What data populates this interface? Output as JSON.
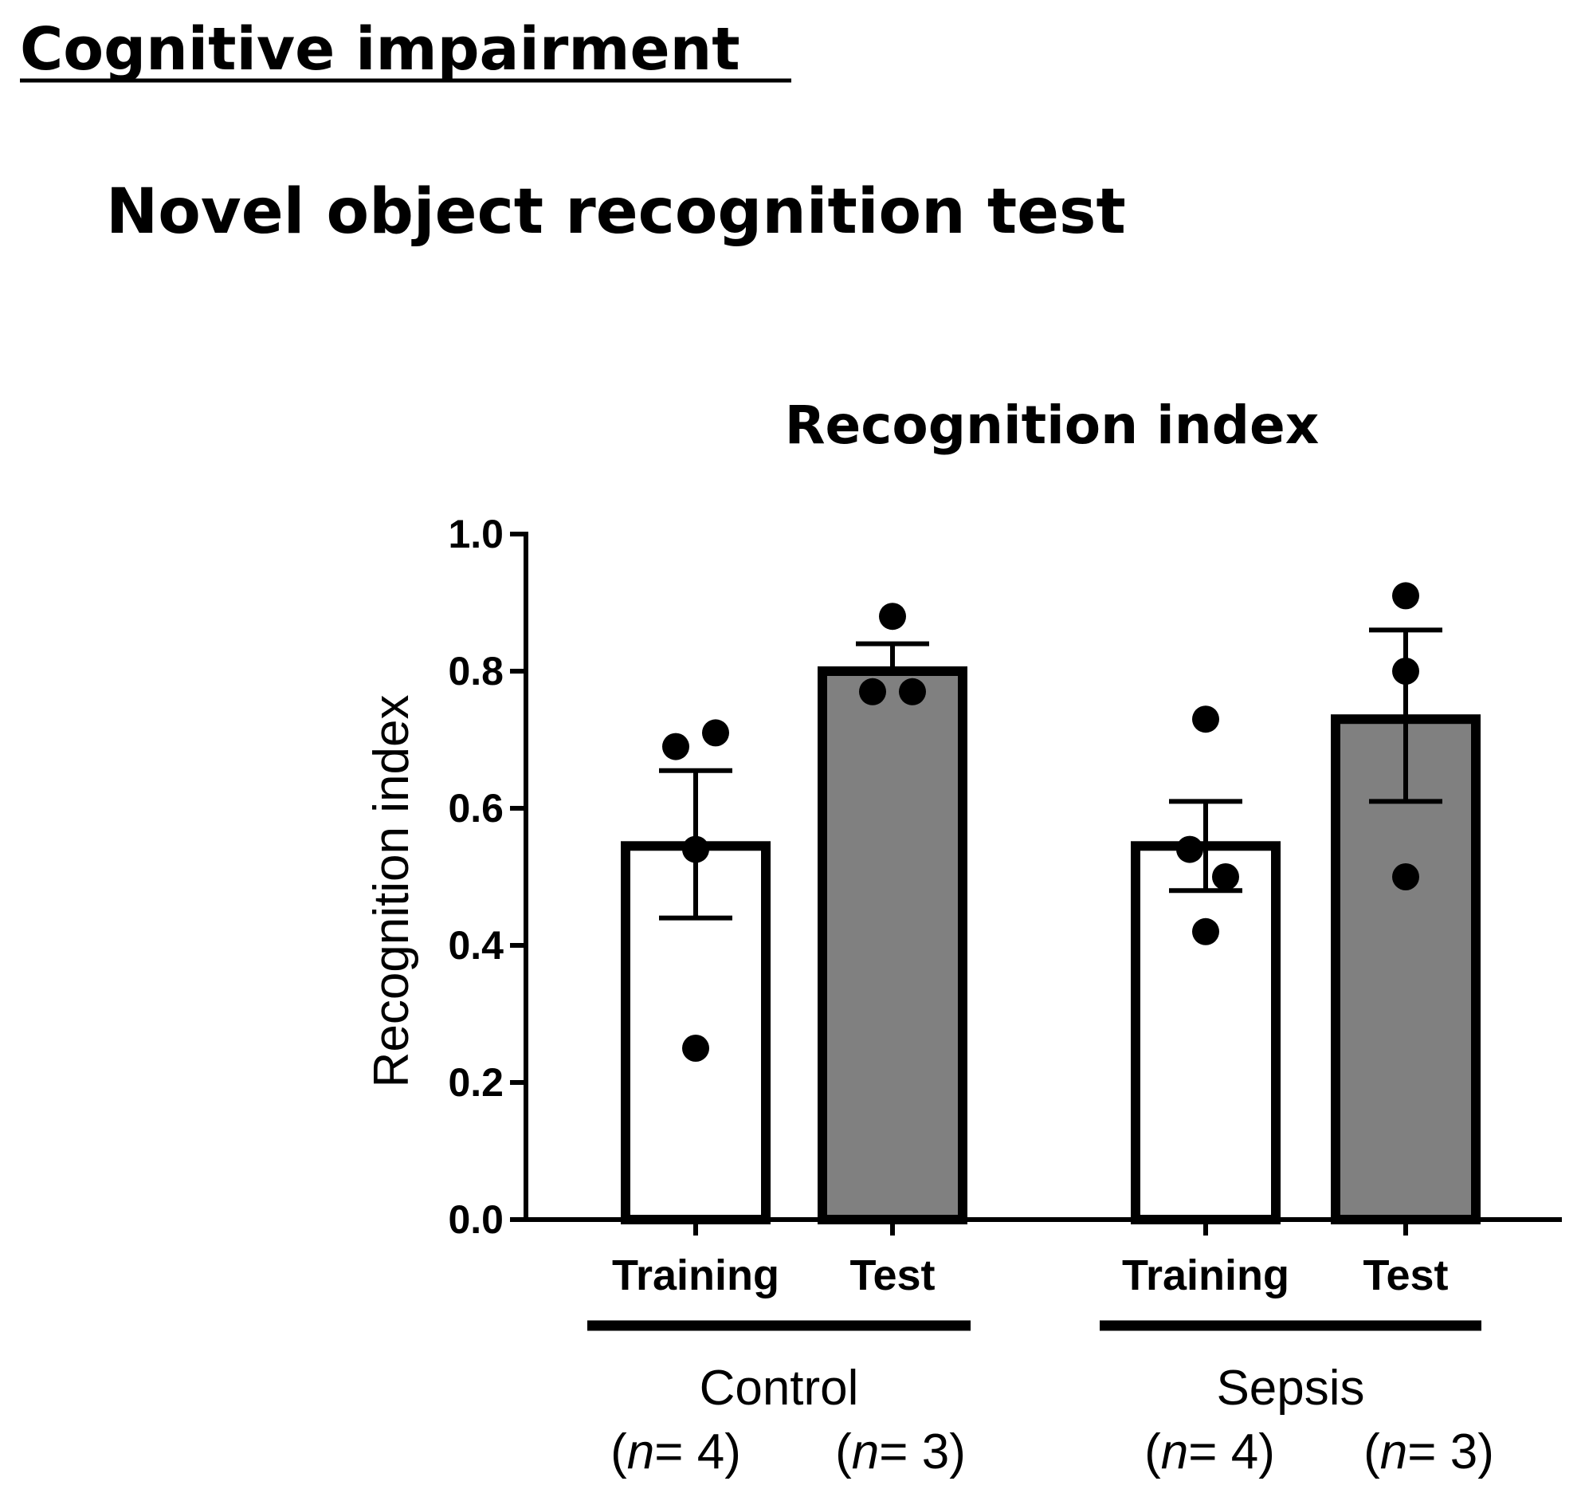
{
  "section_heading": "Cognitive impairment",
  "panel_title": "Novel object recognition test",
  "chart_data": {
    "type": "bar",
    "title": "Recognition index",
    "ylabel": "Recognition index",
    "xlabel": "",
    "ylim": [
      0,
      1.0
    ],
    "yticks": [
      "0.0",
      "0.2",
      "0.4",
      "0.6",
      "0.8",
      "1.0"
    ],
    "categories": [
      "Training",
      "Test",
      "Training",
      "Test"
    ],
    "groups": [
      {
        "name": "Control",
        "n_labels": [
          "(n= 4)",
          "(n= 3)"
        ]
      },
      {
        "name": "Sepsis",
        "n_labels": [
          "(n= 4)",
          "(n= 3)"
        ]
      }
    ],
    "bars": [
      {
        "group": "Control",
        "category": "Training",
        "mean": 0.545,
        "err_low": 0.44,
        "err_high": 0.655,
        "points": [
          0.69,
          0.71,
          0.54,
          0.25
        ]
      },
      {
        "group": "Control",
        "category": "Test",
        "mean": 0.8,
        "err_low": 0.8,
        "err_high": 0.84,
        "points": [
          0.88,
          0.77,
          0.77
        ]
      },
      {
        "group": "Sepsis",
        "category": "Training",
        "mean": 0.545,
        "err_low": 0.48,
        "err_high": 0.61,
        "points": [
          0.73,
          0.54,
          0.5,
          0.42
        ]
      },
      {
        "group": "Sepsis",
        "category": "Test",
        "mean": 0.73,
        "err_low": 0.61,
        "err_high": 0.86,
        "points": [
          0.91,
          0.8,
          0.5
        ]
      }
    ],
    "colors": {
      "training_fill": "#ffffff",
      "test_fill": "#808080",
      "stroke": "#000000",
      "point": "#000000"
    },
    "grid": false,
    "legend": "none"
  }
}
